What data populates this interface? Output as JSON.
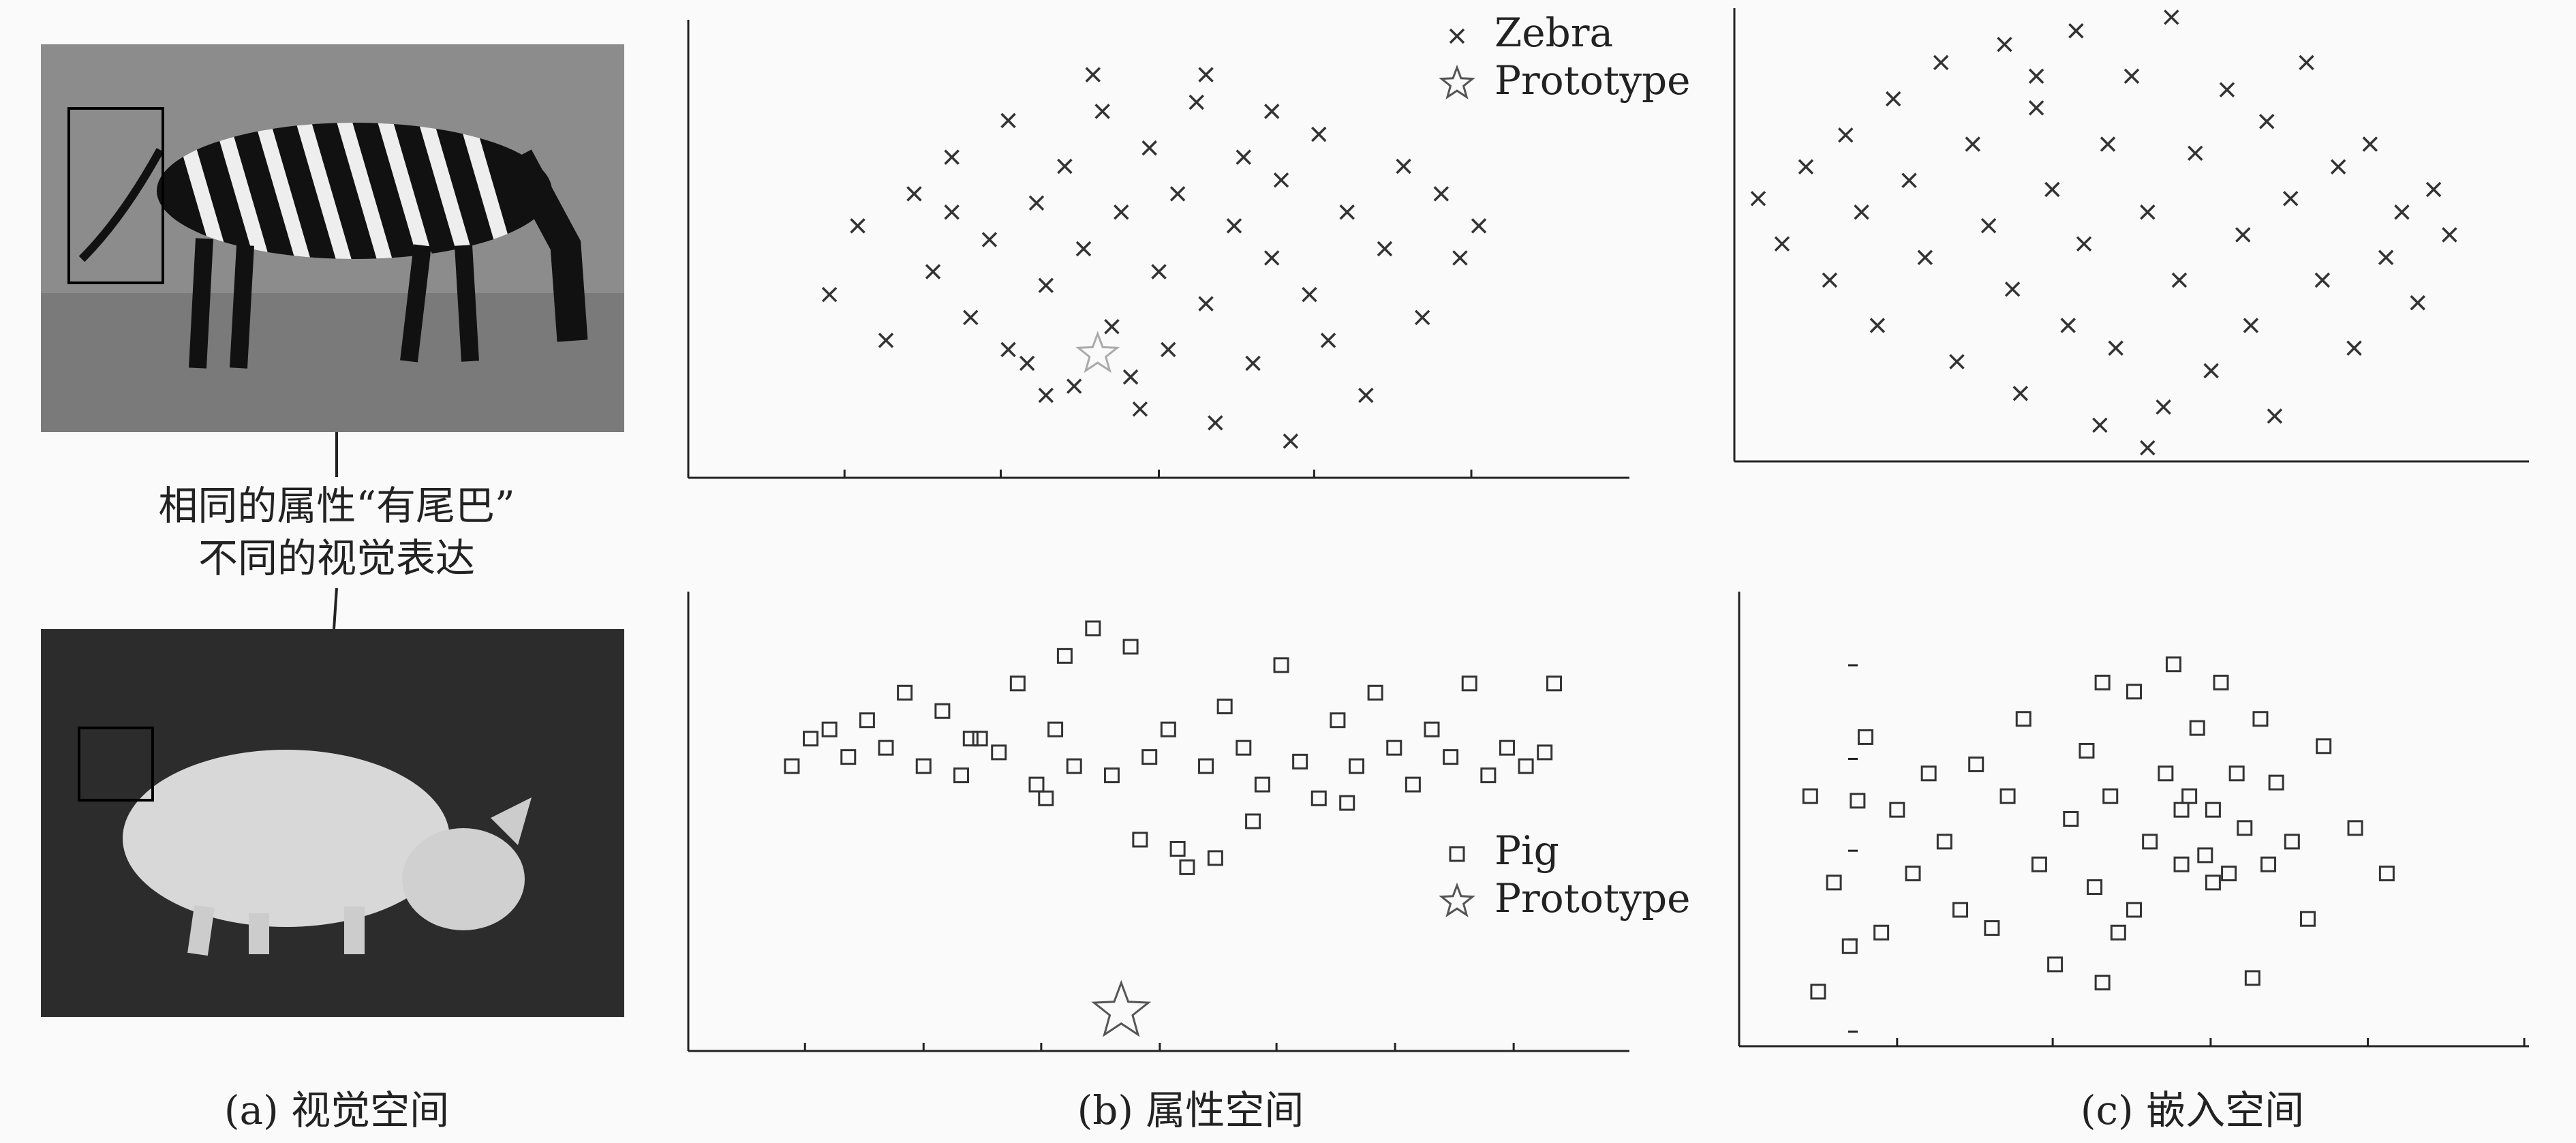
{
  "annotation": [
    "相同的属性“有尾巴”",
    "不同的视觉表达"
  ],
  "captions": [
    "(a) 视觉空间",
    "(b) 属性空间",
    "(c) 嵌入空间"
  ],
  "chart_data": [
    {
      "type": "scatter",
      "xlim": [
        0,
        100
      ],
      "ylim": [
        0,
        100
      ],
      "xticks": [
        16.6,
        33.2,
        50,
        66.5,
        83.2
      ],
      "yticks": [],
      "legend": "upper right",
      "series": [
        {
          "name": "Zebra",
          "color": "#333333",
          "marker": "cross",
          "x": [
            15,
            18,
            21,
            24,
            26,
            28,
            30,
            32,
            34,
            36,
            37,
            38,
            40,
            41,
            42,
            44,
            45,
            46,
            48,
            49,
            50,
            51,
            52,
            54,
            55,
            56,
            58,
            59,
            60,
            62,
            63,
            64,
            66,
            67,
            68,
            70,
            72,
            74,
            76,
            78,
            80,
            82,
            84,
            34,
            43,
            55,
            62,
            47,
            28,
            38
          ],
          "values": [
            40,
            55,
            30,
            62,
            45,
            70,
            35,
            52,
            78,
            25,
            60,
            42,
            68,
            20,
            50,
            80,
            33,
            58,
            15,
            72,
            45,
            28,
            62,
            82,
            38,
            12,
            55,
            70,
            25,
            48,
            65,
            8,
            40,
            75,
            30,
            58,
            18,
            50,
            68,
            35,
            62,
            48,
            55,
            28,
            88,
            88,
            80,
            22,
            58,
            18
          ]
        },
        {
          "name": "Prototype",
          "color": "#aaaaaa",
          "marker": "star",
          "x": [
            43.5
          ],
          "values": [
            27
          ]
        }
      ]
    },
    {
      "type": "scatter",
      "xlim": [
        0,
        100
      ],
      "ylim": [
        0,
        100
      ],
      "xticks": [],
      "yticks": [],
      "series": [
        {
          "color": "#333333",
          "marker": "cross",
          "x": [
            3,
            6,
            9,
            12,
            14,
            16,
            18,
            20,
            22,
            24,
            26,
            28,
            30,
            32,
            34,
            35,
            36,
            38,
            40,
            42,
            43,
            44,
            46,
            47,
            48,
            50,
            52,
            54,
            55,
            56,
            58,
            60,
            62,
            64,
            65,
            67,
            68,
            70,
            72,
            74,
            76,
            78,
            80,
            82,
            84,
            86,
            88,
            90,
            38,
            52
          ],
          "values": [
            58,
            48,
            65,
            40,
            72,
            55,
            30,
            80,
            62,
            45,
            88,
            22,
            70,
            52,
            92,
            38,
            15,
            78,
            60,
            30,
            95,
            48,
            8,
            70,
            25,
            85,
            55,
            12,
            98,
            40,
            68,
            20,
            82,
            50,
            30,
            75,
            10,
            58,
            88,
            40,
            65,
            25,
            70,
            45,
            55,
            35,
            60,
            50,
            85,
            3
          ]
        }
      ]
    },
    {
      "type": "scatter",
      "xlim": [
        0,
        100
      ],
      "ylim": [
        0,
        100
      ],
      "xticks": [
        12.4,
        25,
        37.5,
        50.1,
        62.5,
        75.1,
        87.7
      ],
      "yticks": [],
      "legend": "lower right",
      "series": [
        {
          "name": "Pig",
          "color": "#333333",
          "marker": "square",
          "x": [
            11,
            13,
            15,
            17,
            19,
            21,
            23,
            25,
            27,
            29,
            31,
            33,
            35,
            37,
            39,
            41,
            43,
            45,
            47,
            49,
            51,
            53,
            55,
            57,
            59,
            61,
            63,
            65,
            67,
            69,
            71,
            73,
            75,
            77,
            79,
            81,
            83,
            85,
            87,
            89,
            91,
            92,
            40,
            48,
            52,
            56,
            60,
            38,
            70,
            30
          ],
          "values": [
            62,
            68,
            70,
            64,
            72,
            66,
            78,
            62,
            74,
            60,
            68,
            65,
            80,
            58,
            70,
            62,
            92,
            60,
            88,
            64,
            70,
            40,
            62,
            75,
            66,
            58,
            84,
            63,
            55,
            72,
            62,
            78,
            66,
            58,
            70,
            64,
            80,
            60,
            66,
            62,
            65,
            80,
            86,
            46,
            44,
            42,
            50,
            55,
            54,
            68
          ]
        },
        {
          "name": "Prototype",
          "color": "#555555",
          "marker": "star",
          "x": [
            46
          ],
          "values": [
            8.6
          ]
        }
      ]
    },
    {
      "type": "scatter",
      "xlim": [
        0,
        100
      ],
      "ylim": [
        0,
        100
      ],
      "xticks": [
        20,
        39.7,
        59.7,
        79.6,
        99.4
      ],
      "yticks": [
        83.8,
        63.2,
        43,
        23.5,
        3.2
      ],
      "series": [
        {
          "color": "#333333",
          "marker": "square",
          "x": [
            9,
            10,
            12,
            14,
            15,
            16,
            18,
            20,
            22,
            24,
            26,
            28,
            30,
            32,
            34,
            36,
            38,
            40,
            42,
            44,
            45,
            46,
            47,
            48,
            50,
            52,
            54,
            55,
            56,
            57,
            58,
            59,
            60,
            61,
            62,
            63,
            64,
            65,
            66,
            67,
            68,
            70,
            72,
            74,
            78,
            82,
            56,
            60,
            50,
            46
          ],
          "values": [
            55,
            12,
            36,
            22,
            54,
            68,
            25,
            52,
            38,
            60,
            45,
            30,
            62,
            26,
            55,
            72,
            40,
            18,
            50,
            65,
            35,
            80,
            55,
            25,
            78,
            45,
            60,
            84,
            40,
            55,
            70,
            42,
            52,
            80,
            38,
            60,
            48,
            15,
            72,
            40,
            58,
            45,
            28,
            66,
            48,
            38,
            52,
            36,
            30,
            14
          ]
        }
      ]
    }
  ]
}
